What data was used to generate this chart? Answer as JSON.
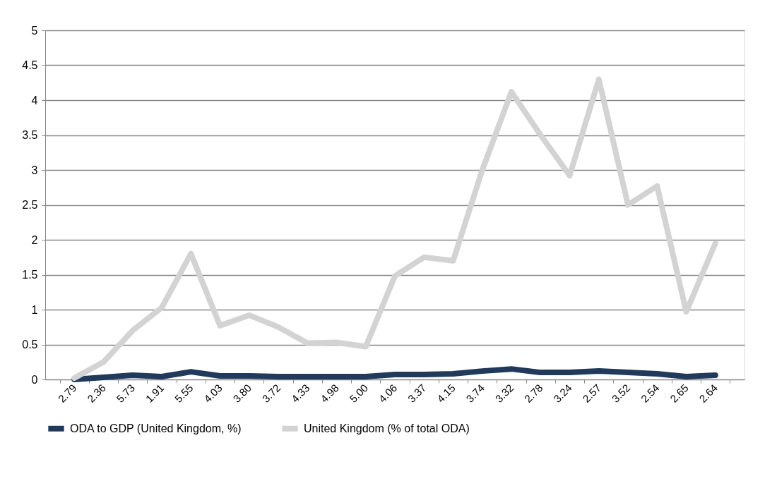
{
  "chart_data": {
    "type": "line",
    "categories": [
      "2.79",
      "2.36",
      "5.73",
      "1.91",
      "5.55",
      "4.03",
      "3.80",
      "3.72",
      "4.33",
      "4.98",
      "5.00",
      "4.06",
      "3.37",
      "4.15",
      "3.74",
      "3.32",
      "2.78",
      "3.24",
      "2.57",
      "3.52",
      "2.54",
      "2.65",
      "2.64"
    ],
    "series": [
      {
        "name": "ODA to GDP (United Kingdom, %)",
        "color": "#213a5c",
        "values": [
          0.0,
          0.03,
          0.06,
          0.04,
          0.11,
          0.05,
          0.05,
          0.04,
          0.04,
          0.04,
          0.04,
          0.07,
          0.07,
          0.08,
          0.12,
          0.15,
          0.1,
          0.1,
          0.12,
          0.1,
          0.08,
          0.04,
          0.06
        ]
      },
      {
        "name": "United Kingdom (% of total ODA)",
        "color": "#d3d3d3",
        "values": [
          0.02,
          0.25,
          0.7,
          1.03,
          1.8,
          0.77,
          0.92,
          0.75,
          0.52,
          0.53,
          0.47,
          1.48,
          1.75,
          1.7,
          3.0,
          4.12,
          3.5,
          2.92,
          4.3,
          2.5,
          2.77,
          0.97,
          1.95
        ]
      }
    ],
    "ylim": [
      0,
      5
    ],
    "yticks": [
      0,
      0.5,
      1,
      1.5,
      2,
      2.5,
      3,
      3.5,
      4,
      4.5,
      5
    ],
    "grid": "y",
    "legend": "bottom",
    "marker": "none",
    "line_style": "solid"
  }
}
